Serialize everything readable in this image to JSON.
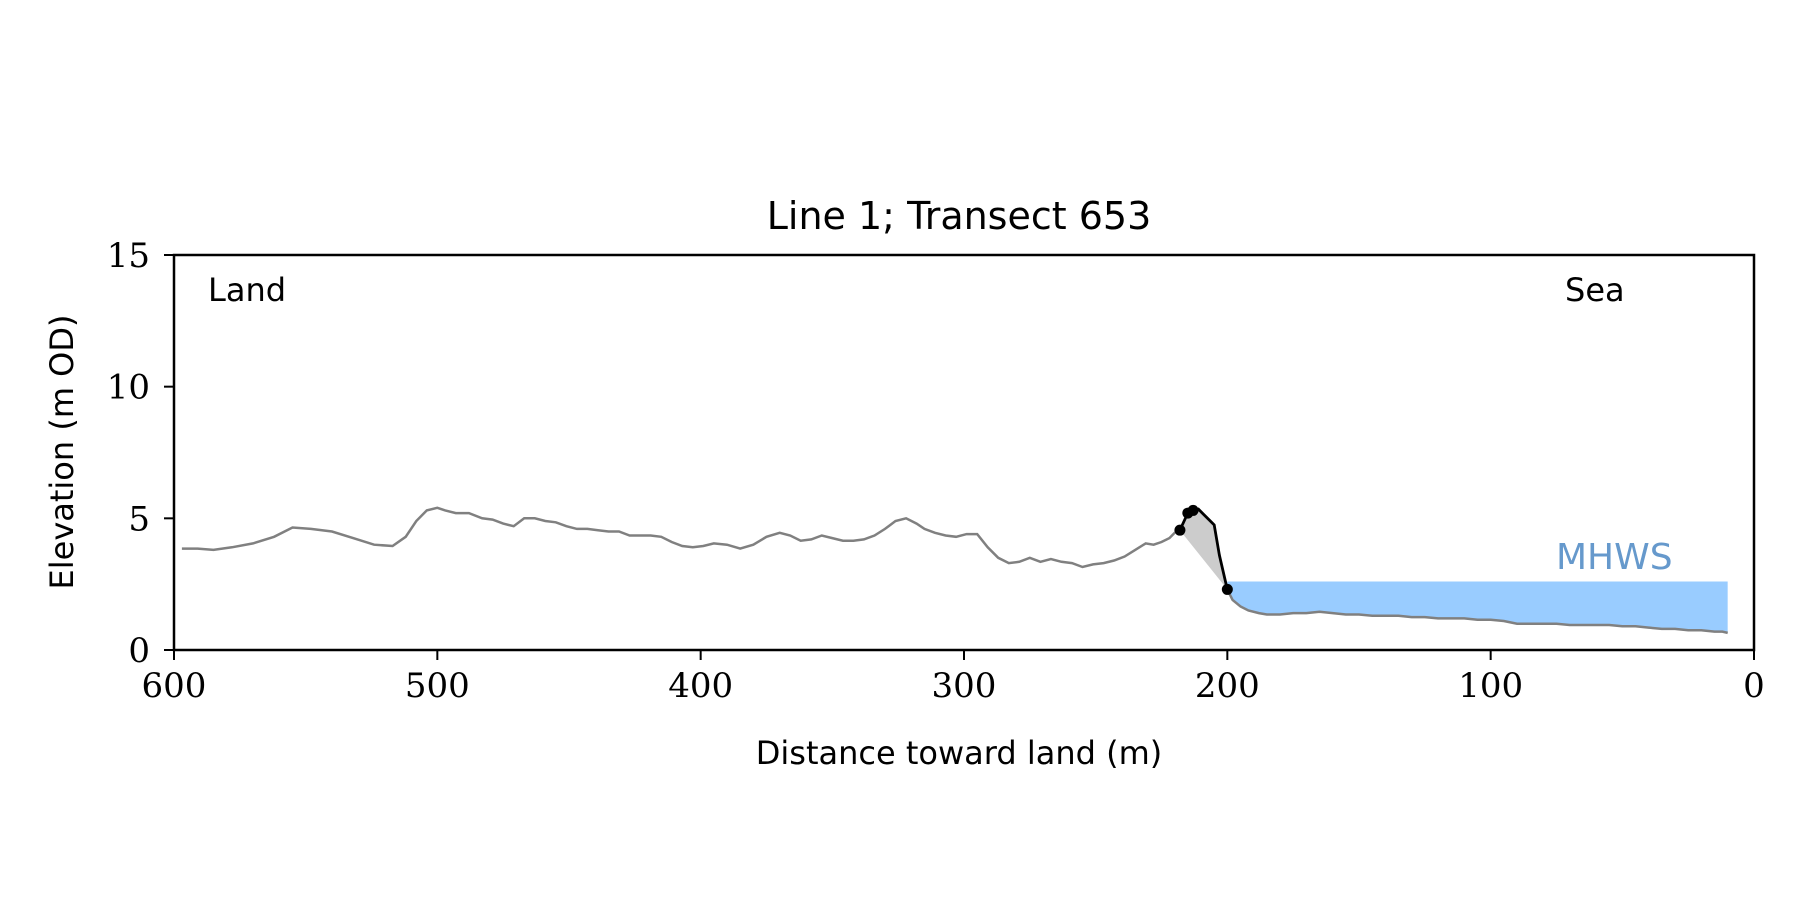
{
  "chart_data": {
    "type": "area",
    "title": "Line 1; Transect 653",
    "xlabel": "Distance toward land (m)",
    "ylabel": "Elevation (m OD)",
    "xlim": [
      600,
      0
    ],
    "ylim": [
      0,
      15
    ],
    "x_ticks": [
      600,
      500,
      400,
      300,
      200,
      100,
      0
    ],
    "y_ticks": [
      0,
      5,
      10,
      15
    ],
    "grid": false,
    "annotations": {
      "left": "Land",
      "right": "Sea",
      "mhws_label": "MHWS"
    },
    "mhws": {
      "level": 2.6,
      "x_start": 200,
      "x_end": 10
    },
    "colors": {
      "profile": "#808080",
      "cliff": "#000000",
      "cliff_fill": "#cccccc",
      "mhws_fill": "#99ccff",
      "mhws_label": "#6699cc"
    },
    "series": [
      {
        "x": [
          597,
          591,
          585,
          578,
          570,
          562,
          555,
          548,
          540,
          532,
          524,
          517,
          512,
          508,
          504,
          500,
          497,
          493,
          488,
          483,
          479,
          475,
          471,
          467,
          463,
          459,
          455,
          451,
          447,
          443,
          439,
          435,
          431,
          427,
          423,
          419,
          415,
          411,
          407,
          403,
          399,
          395,
          390,
          385,
          380,
          375,
          370,
          366,
          362,
          358,
          354,
          350,
          346,
          342,
          338,
          334,
          330,
          326,
          322,
          318,
          315,
          311,
          307,
          303,
          299,
          295,
          291,
          287,
          283,
          279,
          275,
          271,
          267,
          263,
          259,
          255,
          251,
          247,
          243,
          239,
          235,
          231,
          228,
          225,
          222,
          220,
          218
        ],
        "y": [
          3.85,
          3.85,
          3.8,
          3.9,
          4.05,
          4.3,
          4.65,
          4.6,
          4.5,
          4.25,
          4.0,
          3.95,
          4.3,
          4.9,
          5.3,
          5.4,
          5.3,
          5.2,
          5.2,
          5.0,
          4.95,
          4.8,
          4.7,
          5.0,
          5.0,
          4.9,
          4.85,
          4.7,
          4.6,
          4.6,
          4.55,
          4.5,
          4.5,
          4.35,
          4.35,
          4.35,
          4.3,
          4.1,
          3.95,
          3.9,
          3.95,
          4.05,
          4.0,
          3.85,
          4.0,
          4.3,
          4.45,
          4.35,
          4.15,
          4.2,
          4.35,
          4.25,
          4.15,
          4.15,
          4.2,
          4.35,
          4.6,
          4.9,
          5.0,
          4.8,
          4.6,
          4.45,
          4.35,
          4.3,
          4.4,
          4.4,
          3.9,
          3.5,
          3.3,
          3.35,
          3.5,
          3.35,
          3.45,
          3.35,
          3.3,
          3.15,
          3.25,
          3.3,
          3.4,
          3.55,
          3.8,
          4.05,
          4.0,
          4.1,
          4.25,
          4.45,
          4.55
        ]
      },
      {
        "x": [
          218,
          215,
          213,
          211,
          209,
          207,
          205,
          203,
          200
        ],
        "y": [
          4.55,
          5.2,
          5.3,
          5.35,
          5.15,
          4.95,
          4.75,
          3.6,
          2.3
        ]
      },
      {
        "x": [
          200,
          198,
          195,
          192,
          188,
          185,
          180,
          175,
          170,
          165,
          160,
          155,
          150,
          145,
          140,
          135,
          130,
          125,
          120,
          115,
          110,
          105,
          100,
          95,
          90,
          85,
          80,
          75,
          70,
          65,
          60,
          55,
          50,
          45,
          40,
          35,
          30,
          25,
          20,
          15,
          12,
          10
        ],
        "y": [
          2.3,
          1.9,
          1.65,
          1.5,
          1.4,
          1.35,
          1.35,
          1.4,
          1.4,
          1.45,
          1.4,
          1.35,
          1.35,
          1.3,
          1.3,
          1.3,
          1.25,
          1.25,
          1.2,
          1.2,
          1.2,
          1.15,
          1.15,
          1.1,
          1.0,
          1.0,
          1.0,
          1.0,
          0.95,
          0.95,
          0.95,
          0.95,
          0.9,
          0.9,
          0.85,
          0.8,
          0.8,
          0.75,
          0.75,
          0.7,
          0.7,
          0.65
        ]
      }
    ]
  }
}
